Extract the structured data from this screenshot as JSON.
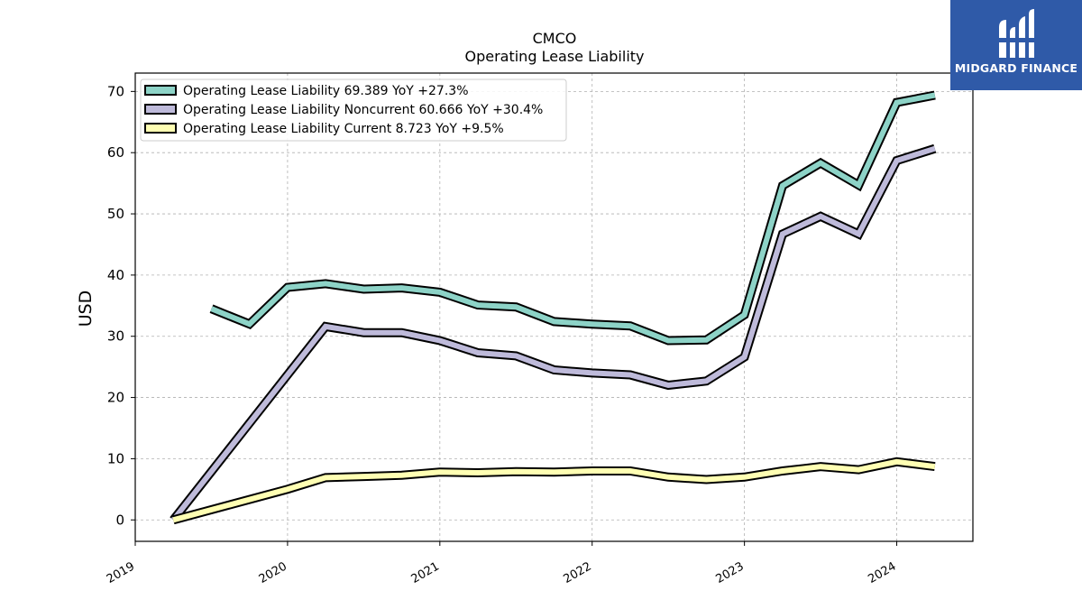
{
  "branding": {
    "name": "MIDGARD FINANCE",
    "bg_color": "#2f5aa8"
  },
  "chart_data": {
    "type": "line",
    "title": "CMCO",
    "subtitle": "Operating Lease Liability",
    "xlabel": "",
    "ylabel": "USD",
    "ylim": [
      -3.5,
      73
    ],
    "xlim": [
      2019.0,
      2024.5
    ],
    "yticks": [
      0,
      10,
      20,
      30,
      40,
      50,
      60,
      70
    ],
    "xticks": [
      "2019",
      "2020",
      "2021",
      "2022",
      "2023",
      "2024"
    ],
    "grid": true,
    "legend_position": "top-left",
    "series": [
      {
        "name": "Operating Lease Liability  69.389 YoY +27.3%",
        "color": "#8dd3c7",
        "x": [
          2019.5,
          2019.75,
          2020.0,
          2020.25,
          2020.5,
          2020.75,
          2021.0,
          2021.25,
          2021.5,
          2021.75,
          2022.0,
          2022.25,
          2022.5,
          2022.75,
          2023.0,
          2023.25,
          2023.5,
          2023.75,
          2024.0,
          2024.25
        ],
        "values": [
          34.5,
          32.0,
          38.0,
          38.6,
          37.7,
          37.9,
          37.2,
          35.1,
          34.8,
          32.4,
          32.0,
          31.7,
          29.3,
          29.4,
          33.5,
          54.6,
          58.3,
          54.7,
          68.2,
          69.389
        ]
      },
      {
        "name": "Operating Lease Liability Noncurrent  60.666 YoY +30.4%",
        "color": "#bebada",
        "x": [
          2019.25,
          2020.25,
          2020.5,
          2020.75,
          2021.0,
          2021.25,
          2021.5,
          2021.75,
          2022.0,
          2022.25,
          2022.5,
          2022.75,
          2023.0,
          2023.25,
          2023.5,
          2023.75,
          2024.0,
          2024.25
        ],
        "values": [
          0.0,
          31.6,
          30.6,
          30.6,
          29.3,
          27.3,
          26.8,
          24.5,
          24.0,
          23.7,
          22.0,
          22.7,
          26.6,
          46.7,
          49.6,
          46.7,
          58.7,
          60.666
        ]
      },
      {
        "name": "Operating Lease Liability Current  8.723 YoY +9.5%",
        "color": "#ffffb3",
        "x": [
          2019.25,
          2020.0,
          2020.25,
          2020.5,
          2020.75,
          2021.0,
          2021.25,
          2021.5,
          2021.75,
          2022.0,
          2022.25,
          2022.5,
          2022.75,
          2023.0,
          2023.25,
          2023.5,
          2023.75,
          2024.0,
          2024.25
        ],
        "values": [
          0.0,
          5.0,
          6.9,
          7.1,
          7.3,
          7.8,
          7.7,
          7.9,
          7.8,
          8.0,
          8.0,
          7.0,
          6.6,
          7.0,
          8.0,
          8.7,
          8.2,
          9.5,
          8.723
        ]
      }
    ]
  }
}
